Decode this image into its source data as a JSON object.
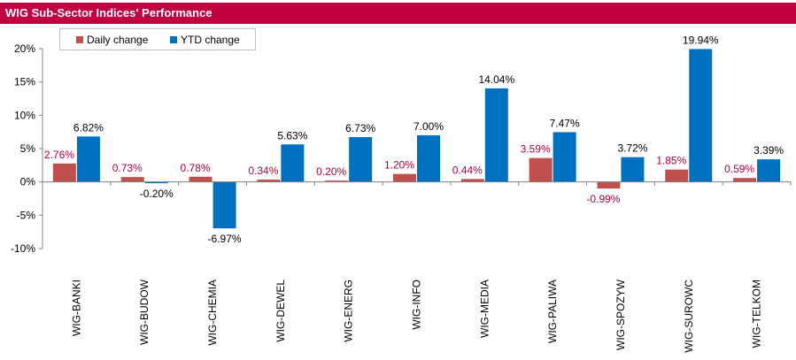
{
  "title": "WIG Sub-Sector Indices' Performance",
  "colors": {
    "title_bg": "#c00040",
    "daily": "#c0504d",
    "ytd": "#0070c0",
    "daily_label": "#b0003a",
    "ytd_label": "#000000",
    "axis": "#808080"
  },
  "legend": {
    "daily_label": "Daily change",
    "ytd_label": "YTD change"
  },
  "chart_data": {
    "type": "bar",
    "title": "WIG Sub-Sector Indices' Performance",
    "xlabel": "",
    "ylabel": "",
    "ylim": [
      -10,
      20
    ],
    "yticks": [
      -10,
      -5,
      0,
      5,
      10,
      15,
      20
    ],
    "ytick_labels": [
      "-10%",
      "-5%",
      "0%",
      "5%",
      "10%",
      "15%",
      "20%"
    ],
    "grid": false,
    "legend_position": "top-left",
    "categories": [
      "WIG-BANKI",
      "WIG-BUDOW",
      "WIG-CHEMIA",
      "WIG-DEWEL",
      "WIG-ENERG",
      "WIG-INFO",
      "WIG-MEDIA",
      "WIG-PALIWA",
      "WIG-SPOZYW",
      "WIG-SUROWC",
      "WIG-TELKOM"
    ],
    "series": [
      {
        "name": "Daily change",
        "values": [
          2.76,
          0.73,
          0.78,
          0.34,
          0.2,
          1.2,
          0.44,
          3.59,
          -0.99,
          1.85,
          0.59
        ],
        "labels": [
          "2.76%",
          "0.73%",
          "0.78%",
          "0.34%",
          "0.20%",
          "1.20%",
          "0.44%",
          "3.59%",
          "-0.99%",
          "1.85%",
          "0.59%"
        ]
      },
      {
        "name": "YTD change",
        "values": [
          6.82,
          -0.2,
          -6.97,
          5.63,
          6.73,
          7.0,
          14.04,
          7.47,
          3.72,
          19.94,
          3.39
        ],
        "labels": [
          "6.82%",
          "-0.20%",
          "-6.97%",
          "5.63%",
          "6.73%",
          "7.00%",
          "14.04%",
          "7.47%",
          "3.72%",
          "19.94%",
          "3.39%"
        ]
      }
    ]
  }
}
